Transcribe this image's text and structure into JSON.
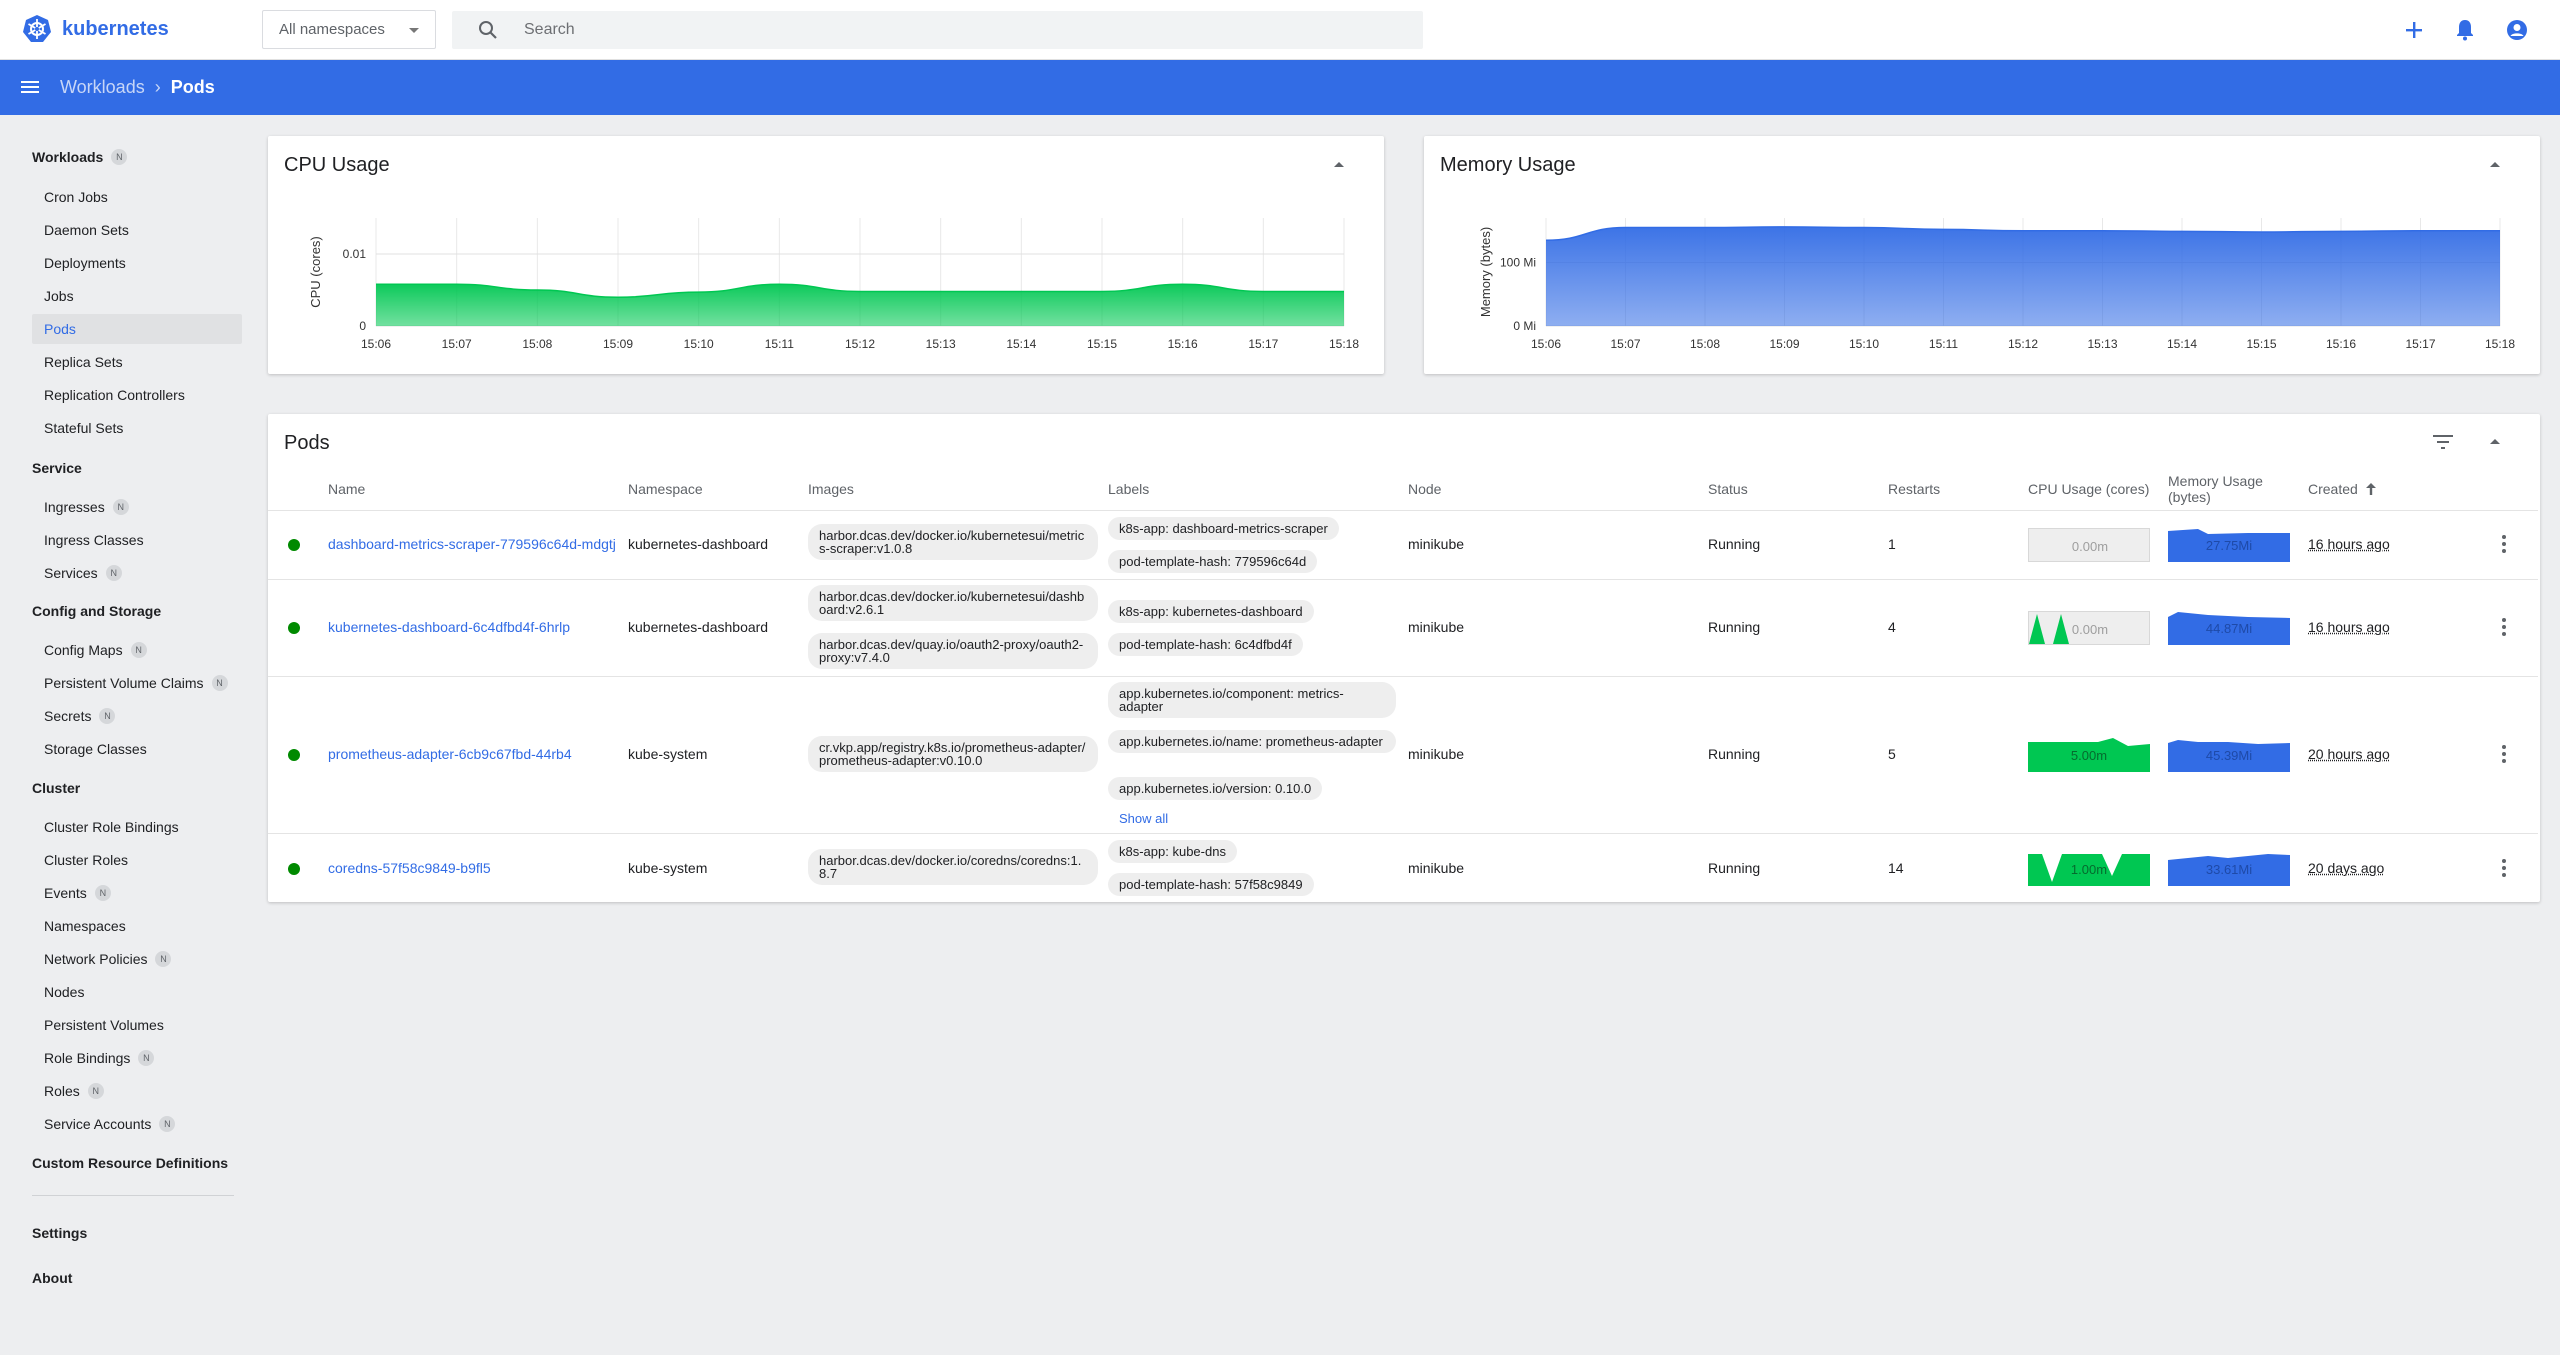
{
  "topbar": {
    "brand": "kubernetes",
    "namespace_select": "All namespaces",
    "search_placeholder": "Search",
    "colors": {
      "accent": "#326ce5"
    }
  },
  "appbar": {
    "breadcrumb_parent": "Workloads",
    "breadcrumb_current": "Pods"
  },
  "sidebar": {
    "workloads": {
      "label": "Workloads",
      "badge": "N"
    },
    "workload_items": [
      "Cron Jobs",
      "Daemon Sets",
      "Deployments",
      "Jobs",
      "Pods",
      "Replica Sets",
      "Replication Controllers",
      "Stateful Sets"
    ],
    "service": {
      "label": "Service"
    },
    "service_items": [
      {
        "label": "Ingresses",
        "badge": "N"
      },
      {
        "label": "Ingress Classes",
        "badge": ""
      },
      {
        "label": "Services",
        "badge": "N"
      }
    ],
    "config": {
      "label": "Config and Storage"
    },
    "config_items": [
      {
        "label": "Config Maps",
        "badge": "N"
      },
      {
        "label": "Persistent Volume Claims",
        "badge": "N"
      },
      {
        "label": "Secrets",
        "badge": "N"
      },
      {
        "label": "Storage Classes",
        "badge": ""
      }
    ],
    "cluster": {
      "label": "Cluster"
    },
    "cluster_items": [
      {
        "label": "Cluster Role Bindings",
        "badge": ""
      },
      {
        "label": "Cluster Roles",
        "badge": ""
      },
      {
        "label": "Events",
        "badge": "N"
      },
      {
        "label": "Namespaces",
        "badge": ""
      },
      {
        "label": "Network Policies",
        "badge": "N"
      },
      {
        "label": "Nodes",
        "badge": ""
      },
      {
        "label": "Persistent Volumes",
        "badge": ""
      },
      {
        "label": "Role Bindings",
        "badge": "N"
      },
      {
        "label": "Roles",
        "badge": "N"
      },
      {
        "label": "Service Accounts",
        "badge": "N"
      }
    ],
    "crd": "Custom Resource Definitions",
    "settings": "Settings",
    "about": "About"
  },
  "cpu_card": {
    "title": "CPU Usage"
  },
  "memory_card": {
    "title": "Memory Usage"
  },
  "chart_data": [
    {
      "type": "area",
      "title": "CPU Usage",
      "ylabel": "CPU (cores)",
      "ylim": [
        0,
        0.015
      ],
      "yticks": [
        "0",
        "0.01"
      ],
      "x": [
        "15:06",
        "15:07",
        "15:08",
        "15:09",
        "15:10",
        "15:11",
        "15:12",
        "15:13",
        "15:14",
        "15:15",
        "15:16",
        "15:17",
        "15:18"
      ],
      "values": [
        0.0058,
        0.0058,
        0.005,
        0.004,
        0.0047,
        0.0058,
        0.0048,
        0.0048,
        0.0048,
        0.0048,
        0.0058,
        0.0048,
        0.0048
      ],
      "color": "#00c752"
    },
    {
      "type": "area",
      "title": "Memory Usage",
      "ylabel": "Memory (bytes)",
      "ylim": [
        0,
        170
      ],
      "yticks": [
        "0 Mi",
        "100 Mi"
      ],
      "x": [
        "15:06",
        "15:07",
        "15:08",
        "15:09",
        "15:10",
        "15:11",
        "15:12",
        "15:13",
        "15:14",
        "15:15",
        "15:16",
        "15:17",
        "15:18"
      ],
      "values": [
        135,
        155,
        155,
        156,
        155,
        152,
        150,
        150,
        149,
        148,
        149,
        150,
        150
      ],
      "color": "#326ce5"
    }
  ],
  "pods": {
    "title": "Pods",
    "headers": {
      "name": "Name",
      "namespace": "Namespace",
      "images": "Images",
      "labels": "Labels",
      "node": "Node",
      "status": "Status",
      "restarts": "Restarts",
      "cpu": "CPU Usage (cores)",
      "memory": "Memory Usage (bytes)",
      "created": "Created"
    },
    "rows": [
      {
        "name": "dashboard-metrics-scraper-779596c64d-mdgtj",
        "namespace": "kubernetes-dashboard",
        "images": [
          "harbor.dcas.dev/docker.io/kubernetesui/metrics-scraper:v1.0.8"
        ],
        "labels": [
          "k8s-app: dashboard-metrics-scraper",
          "pod-template-hash: 779596c64d"
        ],
        "node": "minikube",
        "status": "Running",
        "restarts": "1",
        "cpu": "0.00m",
        "memory": "27.75Mi",
        "created": "16 hours ago"
      },
      {
        "name": "kubernetes-dashboard-6c4dfbd4f-6hrlp",
        "namespace": "kubernetes-dashboard",
        "images": [
          "harbor.dcas.dev/docker.io/kubernetesui/dashboard:v2.6.1",
          "harbor.dcas.dev/quay.io/oauth2-proxy/oauth2-proxy:v7.4.0"
        ],
        "labels": [
          "k8s-app: kubernetes-dashboard",
          "pod-template-hash: 6c4dfbd4f"
        ],
        "node": "minikube",
        "status": "Running",
        "restarts": "4",
        "cpu": "0.00m",
        "memory": "44.87Mi",
        "created": "16 hours ago"
      },
      {
        "name": "prometheus-adapter-6cb9c67fbd-44rb4",
        "namespace": "kube-system",
        "images": [
          "cr.vkp.app/registry.k8s.io/prometheus-adapter/prometheus-adapter:v0.10.0"
        ],
        "labels": [
          "app.kubernetes.io/component: metrics-adapter",
          "app.kubernetes.io/name: prometheus-adapter",
          "app.kubernetes.io/version: 0.10.0"
        ],
        "show_all": "Show all",
        "node": "minikube",
        "status": "Running",
        "restarts": "5",
        "cpu": "5.00m",
        "memory": "45.39Mi",
        "created": "20 hours ago"
      },
      {
        "name": "coredns-57f58c9849-b9fl5",
        "namespace": "kube-system",
        "images": [
          "harbor.dcas.dev/docker.io/coredns/coredns:1.8.7"
        ],
        "labels": [
          "k8s-app: kube-dns",
          "pod-template-hash: 57f58c9849"
        ],
        "node": "minikube",
        "status": "Running",
        "restarts": "14",
        "cpu": "1.00m",
        "memory": "33.61Mi",
        "created": "20 days ago"
      }
    ]
  }
}
